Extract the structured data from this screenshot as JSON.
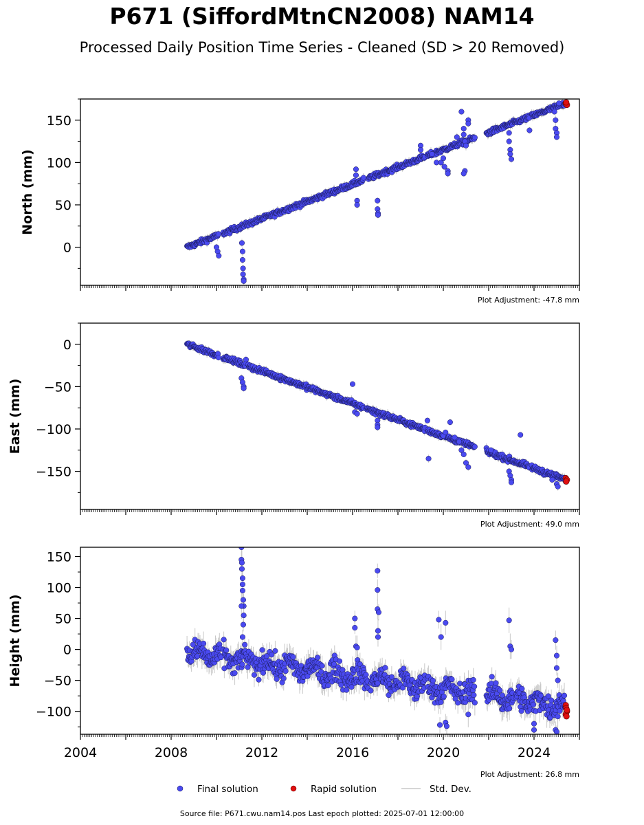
{
  "title": "P671 (SiffordMtnCN2008) NAM14",
  "subtitle": "Processed Daily Position Time Series - Cleaned (SD > 20 Removed)",
  "footer": "Source file: P671.cwu.nam14.pos  Last epoch plotted: 2025-07-01 12:00:00",
  "colors": {
    "final": "#4a4af0",
    "final_edge": "#1a1a5a",
    "rapid": "#e01010",
    "rapid_edge": "#550000",
    "stddev": "#c8c8c8"
  },
  "legend": [
    {
      "label": "Final solution",
      "marker": "blue-dot"
    },
    {
      "label": "Rapid solution",
      "marker": "red-dot"
    },
    {
      "label": "Std. Dev.",
      "marker": "gray-line"
    }
  ],
  "chart_data": [
    {
      "type": "scatter",
      "panel": "north",
      "ylabel": "North (mm)",
      "ylim": [
        -45,
        175
      ],
      "xlim": [
        2004.0,
        2026.0
      ],
      "yticks": [
        0,
        50,
        100,
        150
      ],
      "xticks": [
        2004,
        2008,
        2012,
        2016,
        2020,
        2024
      ],
      "show_xtick_labels": false,
      "annotation": "Plot Adjustment: -47.8 mm",
      "trend": {
        "x0": 2008.7,
        "y0": 0,
        "x1": 2025.4,
        "y1": 170
      },
      "segments": [
        [
          2008.7,
          2010.1
        ],
        [
          2010.3,
          2016.5
        ],
        [
          2016.7,
          2019.2
        ],
        [
          2019.3,
          2021.4
        ],
        [
          2021.9,
          2023.8
        ],
        [
          2023.9,
          2025.4
        ]
      ],
      "noise": 2,
      "outliers": [
        [
          2010.05,
          -5
        ],
        [
          2010.1,
          -10
        ],
        [
          2010.0,
          0
        ],
        [
          2011.15,
          -5
        ],
        [
          2011.15,
          -15
        ],
        [
          2011.17,
          -25
        ],
        [
          2011.17,
          -32
        ],
        [
          2011.2,
          -38
        ],
        [
          2011.2,
          -40
        ],
        [
          2011.12,
          5
        ],
        [
          2016.15,
          92
        ],
        [
          2016.15,
          85
        ],
        [
          2016.2,
          55
        ],
        [
          2016.2,
          50
        ],
        [
          2017.1,
          55
        ],
        [
          2017.1,
          45
        ],
        [
          2017.12,
          40
        ],
        [
          2017.12,
          38
        ],
        [
          2019.0,
          120
        ],
        [
          2019.0,
          115
        ],
        [
          2019.5,
          110
        ],
        [
          2019.7,
          100
        ],
        [
          2019.9,
          100
        ],
        [
          2020.0,
          105
        ],
        [
          2020.05,
          95
        ],
        [
          2020.2,
          90
        ],
        [
          2020.2,
          87
        ],
        [
          2020.6,
          130
        ],
        [
          2020.8,
          160
        ],
        [
          2020.9,
          140
        ],
        [
          2020.9,
          133
        ],
        [
          2020.95,
          125
        ],
        [
          2021.0,
          120
        ],
        [
          2020.95,
          90
        ],
        [
          2020.9,
          87
        ],
        [
          2021.1,
          150
        ],
        [
          2021.1,
          146
        ],
        [
          2022.9,
          135
        ],
        [
          2022.9,
          125
        ],
        [
          2022.95,
          115
        ],
        [
          2022.95,
          110
        ],
        [
          2023.0,
          104
        ],
        [
          2023.8,
          138
        ],
        [
          2024.9,
          160
        ],
        [
          2024.95,
          150
        ],
        [
          2024.95,
          140
        ],
        [
          2025.0,
          135
        ],
        [
          2025.0,
          130
        ],
        [
          2025.1,
          170
        ]
      ],
      "rapid_points": [
        [
          2025.4,
          170
        ],
        [
          2025.45,
          168
        ],
        [
          2025.42,
          171
        ]
      ]
    },
    {
      "type": "scatter",
      "panel": "east",
      "ylabel": "East (mm)",
      "ylim": [
        -195,
        25
      ],
      "xlim": [
        2004.0,
        2026.0
      ],
      "yticks": [
        0,
        -50,
        -100,
        -150
      ],
      "xticks": [
        2004,
        2008,
        2012,
        2016,
        2020,
        2024
      ],
      "show_xtick_labels": false,
      "annotation": "Plot Adjustment: 49.0 mm",
      "trend": {
        "x0": 2008.7,
        "y0": 0,
        "x1": 2025.4,
        "y1": -160
      },
      "segments": [
        [
          2008.7,
          2010.1
        ],
        [
          2010.3,
          2011.3
        ],
        [
          2011.4,
          2016.5
        ],
        [
          2016.6,
          2019.2
        ],
        [
          2019.3,
          2021.4
        ],
        [
          2021.9,
          2023.8
        ],
        [
          2023.9,
          2025.4
        ]
      ],
      "noise": 2,
      "outliers": [
        [
          2011.1,
          -40
        ],
        [
          2011.15,
          -45
        ],
        [
          2011.2,
          -50
        ],
        [
          2011.2,
          -52
        ],
        [
          2011.3,
          -18
        ],
        [
          2016.0,
          -47
        ],
        [
          2016.1,
          -80
        ],
        [
          2016.2,
          -82
        ],
        [
          2017.1,
          -90
        ],
        [
          2017.1,
          -95
        ],
        [
          2017.1,
          -98
        ],
        [
          2019.3,
          -90
        ],
        [
          2019.35,
          -135
        ],
        [
          2020.0,
          -108
        ],
        [
          2020.1,
          -104
        ],
        [
          2020.3,
          -92
        ],
        [
          2020.5,
          -110
        ],
        [
          2020.7,
          -115
        ],
        [
          2020.8,
          -125
        ],
        [
          2020.9,
          -130
        ],
        [
          2021.0,
          -140
        ],
        [
          2021.1,
          -145
        ],
        [
          2022.1,
          -125
        ],
        [
          2022.9,
          -150
        ],
        [
          2022.95,
          -155
        ],
        [
          2023.0,
          -160
        ],
        [
          2023.0,
          -163
        ],
        [
          2023.4,
          -107
        ],
        [
          2024.8,
          -160
        ],
        [
          2025.0,
          -165
        ],
        [
          2025.05,
          -168
        ]
      ],
      "rapid_points": [
        [
          2025.4,
          -158
        ],
        [
          2025.45,
          -160
        ],
        [
          2025.42,
          -162
        ]
      ]
    },
    {
      "type": "scatter",
      "panel": "height",
      "ylabel": "Height (mm)",
      "ylim": [
        -137,
        165
      ],
      "xlim": [
        2004.0,
        2026.0
      ],
      "yticks": [
        150,
        100,
        50,
        0,
        -50,
        -100
      ],
      "xticks": [
        2004,
        2008,
        2012,
        2016,
        2020,
        2024
      ],
      "xtick_labels": [
        "2004",
        "2008",
        "2012",
        "2016",
        "2020",
        "2024"
      ],
      "show_xtick_labels": true,
      "annotation": "Plot Adjustment: 26.8 mm",
      "trend": {
        "x0": 2008.7,
        "y0": -5,
        "x1": 2025.4,
        "y1": -92
      },
      "segments": [
        [
          2008.7,
          2010.2
        ],
        [
          2010.3,
          2016.7
        ],
        [
          2016.8,
          2019.2
        ],
        [
          2019.3,
          2021.4
        ],
        [
          2021.9,
          2023.1
        ],
        [
          2023.2,
          2025.4
        ]
      ],
      "noise": 13,
      "outliers": [
        [
          2011.1,
          165
        ],
        [
          2011.1,
          145
        ],
        [
          2011.12,
          140
        ],
        [
          2011.12,
          130
        ],
        [
          2011.15,
          115
        ],
        [
          2011.15,
          105
        ],
        [
          2011.15,
          95
        ],
        [
          2011.18,
          80
        ],
        [
          2011.2,
          70
        ],
        [
          2011.2,
          55
        ],
        [
          2011.18,
          40
        ],
        [
          2011.15,
          20
        ],
        [
          2011.1,
          70
        ],
        [
          2016.1,
          50
        ],
        [
          2016.1,
          35
        ],
        [
          2016.15,
          5
        ],
        [
          2016.2,
          3
        ],
        [
          2017.1,
          127
        ],
        [
          2017.1,
          96
        ],
        [
          2017.1,
          65
        ],
        [
          2017.15,
          60
        ],
        [
          2017.12,
          30
        ],
        [
          2017.12,
          20
        ],
        [
          2019.8,
          48
        ],
        [
          2019.9,
          20
        ],
        [
          2020.1,
          43
        ],
        [
          2019.85,
          -122
        ],
        [
          2020.1,
          -118
        ],
        [
          2020.15,
          -124
        ],
        [
          2021.1,
          -105
        ],
        [
          2022.9,
          47
        ],
        [
          2022.95,
          5
        ],
        [
          2023.0,
          0
        ],
        [
          2024.95,
          15
        ],
        [
          2025.0,
          -10
        ],
        [
          2025.0,
          -30
        ],
        [
          2025.05,
          -50
        ],
        [
          2024.0,
          -130
        ],
        [
          2024.0,
          -120
        ],
        [
          2024.95,
          -130
        ],
        [
          2025.0,
          -133
        ]
      ],
      "rapid_points": [
        [
          2025.4,
          -90
        ],
        [
          2025.42,
          -95
        ],
        [
          2025.45,
          -100
        ],
        [
          2025.4,
          -105
        ],
        [
          2025.43,
          -108
        ],
        [
          2025.45,
          -98
        ]
      ]
    }
  ]
}
